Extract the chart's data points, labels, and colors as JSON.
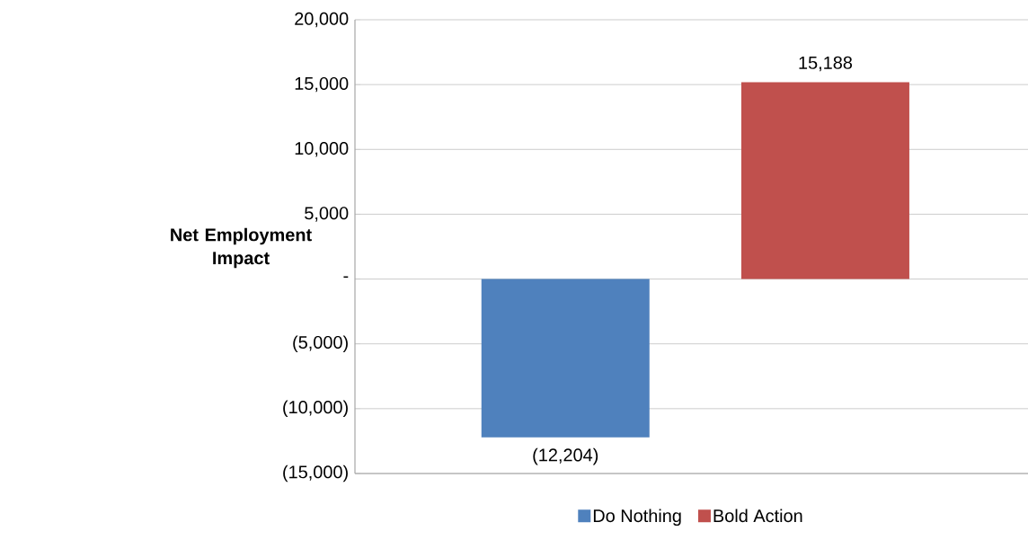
{
  "chart_data": {
    "type": "bar",
    "ylabel": "Net Employment Impact",
    "categories": [
      null,
      null
    ],
    "series": [
      {
        "name": "Do Nothing",
        "color": "#4f81bd",
        "values": [
          -12204,
          null
        ],
        "value_labels": [
          "(12,204)",
          null
        ]
      },
      {
        "name": "Bold Action",
        "color": "#c0504d",
        "values": [
          null,
          15188
        ],
        "value_labels": [
          null,
          "15,188"
        ]
      }
    ],
    "ylim": [
      -15000,
      20000
    ],
    "yticks": [
      {
        "value": -15000,
        "label": "(15,000)"
      },
      {
        "value": -10000,
        "label": "(10,000)"
      },
      {
        "value": -5000,
        "label": "(5,000)"
      },
      {
        "value": 0,
        "label": "-"
      },
      {
        "value": 5000,
        "label": "5,000"
      },
      {
        "value": 10000,
        "label": "10,000"
      },
      {
        "value": 15000,
        "label": "15,000"
      },
      {
        "value": 20000,
        "label": "20,000"
      }
    ],
    "grid": "y",
    "legend": "bottom"
  }
}
